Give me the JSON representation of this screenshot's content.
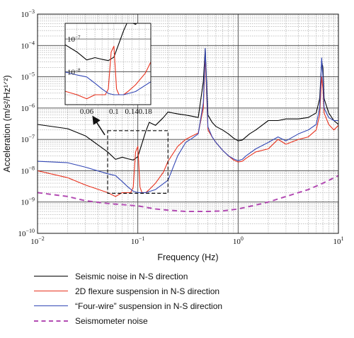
{
  "chart_data": {
    "type": "line",
    "xlabel": "Frequency (Hz)",
    "ylabel": "Acceleration (m/s²/Hz¹ᐟ²)",
    "x_scale": "log",
    "y_scale": "log",
    "xlim": [
      0.01,
      10
    ],
    "ylim": [
      1e-10,
      0.001
    ],
    "grid": true,
    "x_ticks": [
      {
        "value": 0.01,
        "base": "10",
        "exp": "−2"
      },
      {
        "value": 0.1,
        "base": "10",
        "exp": "−1"
      },
      {
        "value": 1,
        "base": "10",
        "exp": "0"
      },
      {
        "value": 10,
        "base": "10",
        "exp": "1"
      }
    ],
    "y_ticks": [
      {
        "value": 1e-10,
        "base": "10",
        "exp": "−10"
      },
      {
        "value": 1e-09,
        "base": "10",
        "exp": "−9"
      },
      {
        "value": 1e-08,
        "base": "10",
        "exp": "−8"
      },
      {
        "value": 1e-07,
        "base": "10",
        "exp": "−7"
      },
      {
        "value": 1e-06,
        "base": "10",
        "exp": "−6"
      },
      {
        "value": 1e-05,
        "base": "10",
        "exp": "−5"
      },
      {
        "value": 0.0001,
        "base": "10",
        "exp": "−4"
      },
      {
        "value": 0.001,
        "base": "10",
        "exp": "−3"
      }
    ],
    "series": [
      {
        "name": "Seismic noise in N-S direction",
        "color": "#000000",
        "dash": "none",
        "x": [
          0.01,
          0.02,
          0.03,
          0.05,
          0.06,
          0.07,
          0.08,
          0.09,
          0.1,
          0.12,
          0.13,
          0.15,
          0.18,
          0.2,
          0.25,
          0.3,
          0.35,
          0.4,
          0.45,
          0.47,
          0.5,
          0.55,
          0.6,
          0.7,
          0.8,
          0.9,
          1.0,
          1.1,
          1.3,
          1.5,
          2.0,
          2.5,
          3.0,
          4.0,
          5.0,
          6.0,
          6.5,
          6.8,
          7.0,
          7.2,
          8.0,
          9.0,
          10.0
        ],
        "y": [
          3e-07,
          2.2e-07,
          1.3e-07,
          4e-08,
          2.3e-08,
          2.7e-08,
          2.4e-08,
          2.2e-08,
          2.8e-08,
          1.8e-07,
          3.5e-07,
          2.8e-07,
          5e-07,
          7.5e-07,
          6.5e-07,
          6e-07,
          5.5e-07,
          5e-07,
          7e-06,
          8e-05,
          6e-07,
          3.5e-07,
          2.6e-07,
          2e-07,
          1.5e-07,
          1.1e-07,
          9e-08,
          9.5e-08,
          1.5e-07,
          2e-07,
          4e-07,
          4e-07,
          4.5e-07,
          4.5e-07,
          5e-07,
          7e-07,
          2e-06,
          3e-05,
          2e-05,
          2e-06,
          7e-07,
          4e-07,
          3e-07
        ]
      },
      {
        "name": "2D flexure suspension in N-S direction",
        "color": "#e8321e",
        "dash": "none",
        "x": [
          0.01,
          0.02,
          0.03,
          0.05,
          0.06,
          0.07,
          0.08,
          0.085,
          0.09,
          0.095,
          0.1,
          0.105,
          0.11,
          0.12,
          0.13,
          0.15,
          0.18,
          0.2,
          0.25,
          0.3,
          0.35,
          0.4,
          0.45,
          0.47,
          0.5,
          0.55,
          0.6,
          0.7,
          0.8,
          0.9,
          1.0,
          1.1,
          1.2,
          1.5,
          2.0,
          2.5,
          3.0,
          4.0,
          5.0,
          6.0,
          6.5,
          6.8,
          7.0,
          7.2,
          8.0,
          9.0,
          10.0
        ],
        "y": [
          1e-08,
          6e-09,
          3.5e-09,
          2e-09,
          1.5e-09,
          2e-09,
          2e-09,
          2e-09,
          3e-09,
          4e-08,
          6e-08,
          3e-09,
          2e-09,
          2e-09,
          2.5e-09,
          4e-09,
          9e-09,
          2e-08,
          6e-08,
          1e-07,
          1.3e-07,
          1.6e-07,
          1e-06,
          5e-05,
          2e-07,
          1.2e-07,
          8e-08,
          4.5e-08,
          3e-08,
          2.2e-08,
          1.9e-08,
          2e-08,
          2.5e-08,
          4e-08,
          5e-08,
          1e-07,
          7e-08,
          1e-07,
          1.2e-07,
          2e-07,
          6e-07,
          1e-05,
          4e-06,
          7e-07,
          3e-07,
          2e-07,
          2.8e-07
        ]
      },
      {
        "name": "“Four-wire” suspension in N-S direction",
        "color": "#3347b5",
        "dash": "none",
        "x": [
          0.01,
          0.02,
          0.03,
          0.05,
          0.06,
          0.07,
          0.08,
          0.09,
          0.1,
          0.12,
          0.15,
          0.2,
          0.25,
          0.3,
          0.35,
          0.4,
          0.45,
          0.47,
          0.5,
          0.55,
          0.6,
          0.7,
          0.8,
          0.9,
          1.0,
          1.1,
          1.2,
          1.5,
          2.0,
          2.5,
          3.0,
          4.0,
          5.0,
          6.0,
          6.5,
          6.8,
          7.0,
          7.2,
          8.0,
          9.0,
          10.0
        ],
        "y": [
          2e-08,
          1.8e-08,
          1.3e-08,
          8e-09,
          7e-09,
          4.5e-09,
          3e-09,
          2.2e-09,
          2e-09,
          2e-09,
          2.5e-09,
          5e-09,
          3e-08,
          8e-08,
          1.1e-07,
          1.5e-07,
          1.5e-06,
          8e-05,
          2.5e-07,
          1.2e-07,
          8e-08,
          4.5e-08,
          3e-08,
          2.4e-08,
          2.1e-08,
          2.3e-08,
          3e-08,
          5e-08,
          8e-08,
          1.2e-07,
          9e-08,
          1.5e-07,
          2e-07,
          3e-07,
          1e-06,
          4e-05,
          1e-05,
          1e-06,
          5e-07,
          4e-07,
          4e-07
        ]
      },
      {
        "name": "Seismometer noise",
        "color": "#b34bb3",
        "dash": "7,5",
        "x": [
          0.01,
          0.02,
          0.03,
          0.05,
          0.1,
          0.15,
          0.2,
          0.3,
          0.5,
          0.7,
          1.0,
          1.5,
          2.0,
          3.0,
          5.0,
          7.0,
          10.0
        ],
        "y": [
          2e-09,
          1.5e-09,
          1.1e-09,
          9e-10,
          7.5e-10,
          6e-10,
          5.5e-10,
          5e-10,
          5e-10,
          5.2e-10,
          6e-10,
          8e-10,
          1e-09,
          1.5e-09,
          2.5e-09,
          4e-09,
          7e-09
        ]
      }
    ],
    "inset": {
      "xlim": [
        0.04,
        0.2
      ],
      "ylim": [
        1e-09,
        3e-07
      ],
      "x_ticks": [
        {
          "value": 0.06,
          "label": "0.06"
        },
        {
          "value": 0.1,
          "label": "0.1"
        },
        {
          "value": 0.14,
          "label": "0.14"
        },
        {
          "value": 0.18,
          "label": "0.18"
        }
      ],
      "y_ticks": [
        {
          "value": 1e-07,
          "base": "10",
          "exp": "−7"
        },
        {
          "value": 1e-08,
          "base": "10",
          "exp": "−8"
        }
      ]
    }
  }
}
